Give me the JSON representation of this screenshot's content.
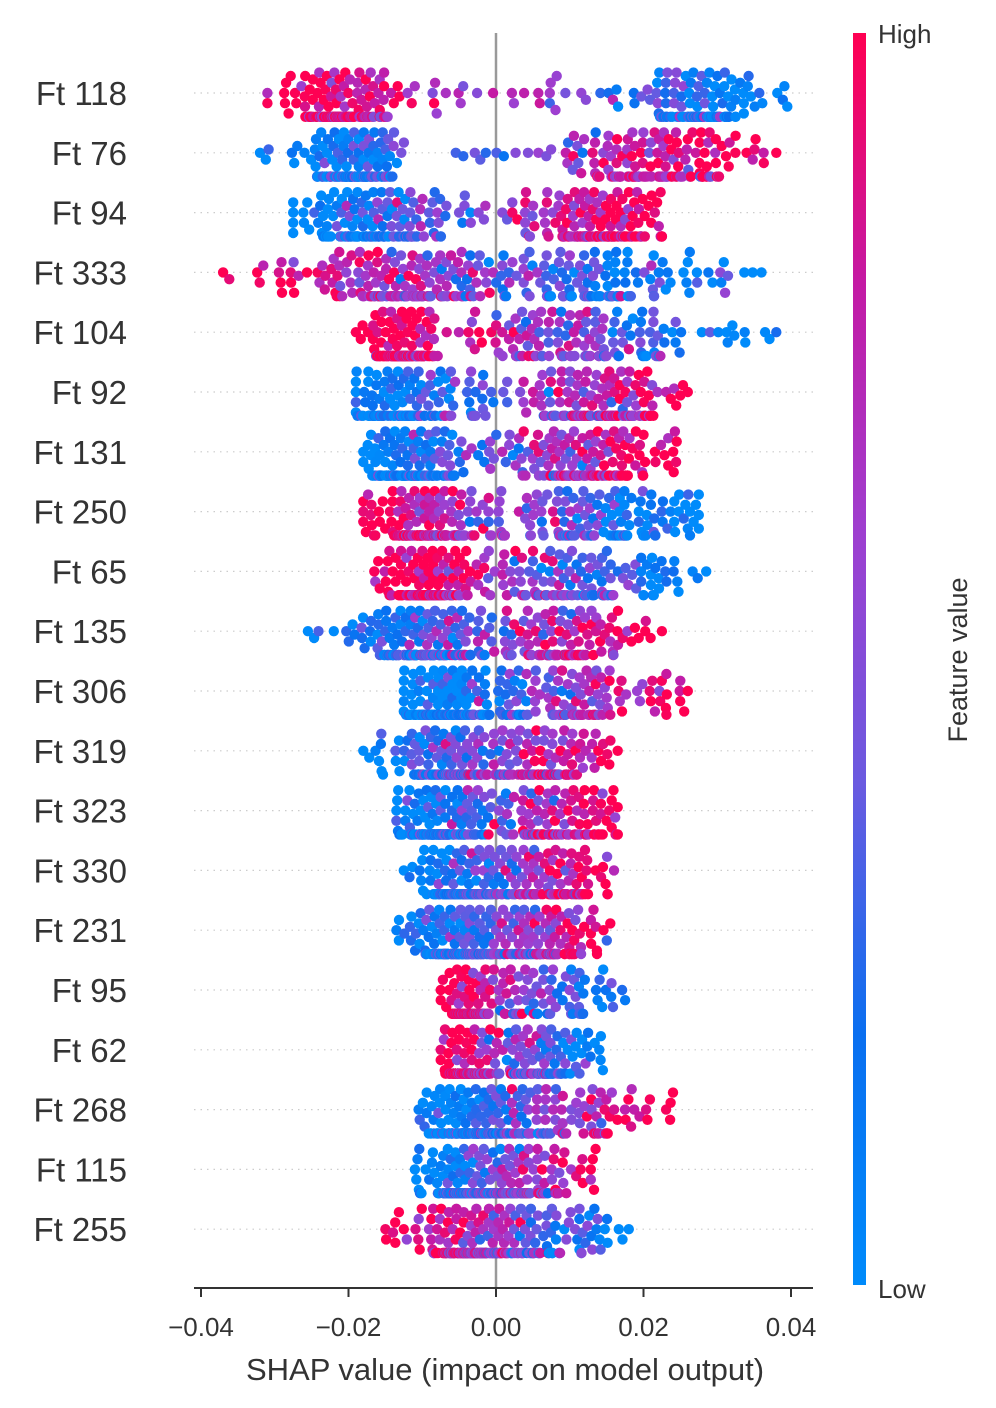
{
  "chart_data": {
    "type": "scatter",
    "subtype": "beeswarm",
    "xlabel": "SHAP value (impact on model output)",
    "xlim": [
      -0.0415,
      0.0405
    ],
    "xticks": [
      -0.04,
      -0.02,
      0.0,
      0.02,
      0.04
    ],
    "xtick_labels": [
      "−0.04",
      "−0.02",
      "0.00",
      "0.02",
      "0.04"
    ],
    "zero_line": 0.0,
    "colorbar": {
      "title": "Feature value",
      "high_label": "High",
      "low_label": "Low",
      "high_color": "#ff0052",
      "low_color": "#008bfb"
    },
    "features": [
      {
        "name": "Ft 118",
        "min": -0.031,
        "max": 0.0395,
        "low_side": "right",
        "modes": [
          [
            -0.021,
            1.0,
            0.0035
          ],
          [
            0.028,
            0.9,
            0.004
          ]
        ]
      },
      {
        "name": "Ft 76",
        "min": -0.032,
        "max": 0.038,
        "low_side": "left",
        "modes": [
          [
            -0.0195,
            1.0,
            0.003
          ],
          [
            0.022,
            0.75,
            0.006
          ]
        ]
      },
      {
        "name": "Ft 94",
        "min": -0.0275,
        "max": 0.0225,
        "low_side": "left",
        "modes": [
          [
            -0.0165,
            0.8,
            0.005
          ],
          [
            0.0135,
            1.0,
            0.004
          ]
        ]
      },
      {
        "name": "Ft 333",
        "min": -0.037,
        "max": 0.036,
        "low_side": "right",
        "modes": [
          [
            -0.0135,
            1.0,
            0.006
          ],
          [
            0.0125,
            0.8,
            0.007
          ]
        ]
      },
      {
        "name": "Ft 104",
        "min": -0.019,
        "max": 0.038,
        "low_side": "right",
        "modes": [
          [
            -0.0125,
            1.0,
            0.002
          ],
          [
            0.0105,
            0.55,
            0.007
          ]
        ]
      },
      {
        "name": "Ft 92",
        "min": -0.019,
        "max": 0.026,
        "low_side": "left",
        "modes": [
          [
            -0.012,
            1.0,
            0.0035
          ],
          [
            0.0135,
            0.9,
            0.005
          ]
        ]
      },
      {
        "name": "Ft 131",
        "min": -0.018,
        "max": 0.0245,
        "low_side": "left",
        "modes": [
          [
            -0.0115,
            1.0,
            0.003
          ],
          [
            0.0115,
            0.9,
            0.005
          ]
        ]
      },
      {
        "name": "Ft 250",
        "min": -0.018,
        "max": 0.0275,
        "low_side": "right",
        "modes": [
          [
            -0.0095,
            1.0,
            0.0035
          ],
          [
            0.0135,
            0.7,
            0.006
          ]
        ]
      },
      {
        "name": "Ft 65",
        "min": -0.0165,
        "max": 0.0285,
        "low_side": "right",
        "modes": [
          [
            -0.0095,
            1.0,
            0.003
          ],
          [
            0.0115,
            0.7,
            0.006
          ]
        ]
      },
      {
        "name": "Ft 135",
        "min": -0.0255,
        "max": 0.0225,
        "low_side": "left",
        "modes": [
          [
            -0.0095,
            1.0,
            0.004
          ],
          [
            0.0095,
            0.75,
            0.0045
          ]
        ]
      },
      {
        "name": "Ft 306",
        "min": -0.0125,
        "max": 0.026,
        "low_side": "left",
        "modes": [
          [
            -0.0075,
            1.0,
            0.0025
          ],
          [
            0.0075,
            0.55,
            0.007
          ]
        ]
      },
      {
        "name": "Ft 319",
        "min": -0.018,
        "max": 0.0165,
        "low_side": "left",
        "modes": [
          [
            -0.0065,
            1.0,
            0.003
          ],
          [
            0.0055,
            0.8,
            0.004
          ]
        ]
      },
      {
        "name": "Ft 323",
        "min": -0.0135,
        "max": 0.0165,
        "low_side": "left",
        "modes": [
          [
            -0.0075,
            1.0,
            0.0025
          ],
          [
            0.0075,
            0.6,
            0.004
          ]
        ]
      },
      {
        "name": "Ft 330",
        "min": -0.0125,
        "max": 0.016,
        "low_side": "left",
        "modes": [
          [
            -0.0045,
            1.0,
            0.0025
          ],
          [
            0.0055,
            0.75,
            0.0035
          ]
        ]
      },
      {
        "name": "Ft 231",
        "min": -0.0135,
        "max": 0.0155,
        "low_side": "left",
        "modes": [
          [
            -0.005,
            1.0,
            0.0025
          ],
          [
            0.0055,
            0.7,
            0.0035
          ]
        ]
      },
      {
        "name": "Ft 95",
        "min": -0.0075,
        "max": 0.0175,
        "low_side": "right",
        "modes": [
          [
            -0.0035,
            1.0,
            0.001
          ],
          [
            0.0035,
            0.3,
            0.005
          ]
        ]
      },
      {
        "name": "Ft 62",
        "min": -0.0075,
        "max": 0.0145,
        "low_side": "right",
        "modes": [
          [
            -0.0035,
            1.0,
            0.0015
          ],
          [
            0.0055,
            0.55,
            0.0025
          ]
        ]
      },
      {
        "name": "Ft 268",
        "min": -0.0105,
        "max": 0.024,
        "low_side": "left",
        "modes": [
          [
            -0.0035,
            1.0,
            0.0025
          ],
          [
            0.0075,
            0.4,
            0.006
          ]
        ]
      },
      {
        "name": "Ft 115",
        "min": -0.011,
        "max": 0.0135,
        "low_side": "left",
        "modes": [
          [
            -0.0045,
            1.0,
            0.0025
          ],
          [
            0.0025,
            0.9,
            0.003
          ]
        ]
      },
      {
        "name": "Ft 255",
        "min": -0.015,
        "max": 0.018,
        "low_side": "right",
        "modes": [
          [
            -0.0035,
            1.0,
            0.003
          ],
          [
            0.0045,
            0.6,
            0.005
          ]
        ]
      }
    ]
  }
}
